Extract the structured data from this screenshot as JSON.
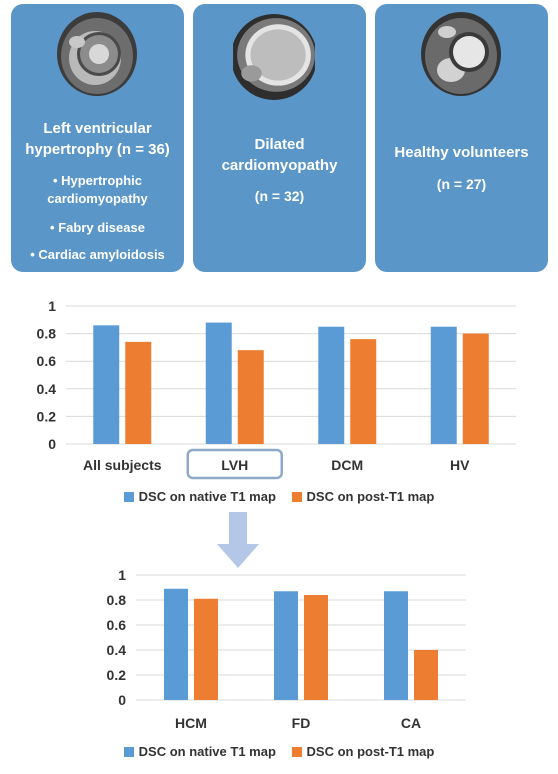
{
  "cards": [
    {
      "title_lines": [
        "Left ventricular",
        "hypertrophy (n = 36)"
      ],
      "subitems": [
        {
          "lines": [
            "• Hypertrophic",
            "cardiomyopathy"
          ]
        },
        {
          "lines": [
            "• Fabry disease"
          ]
        },
        {
          "lines": [
            "• Cardiac amyloidosis"
          ]
        }
      ]
    },
    {
      "title_lines": [
        "Dilated",
        "cardiomyopathy"
      ],
      "count": "(n = 32)"
    },
    {
      "title_lines": [
        "Healthy volunteers"
      ],
      "count": "(n = 27)"
    }
  ],
  "chart_data": [
    {
      "type": "bar",
      "categories": [
        "All subjects",
        "LVH",
        "DCM",
        "HV"
      ],
      "highlighted_category": "LVH",
      "series": [
        {
          "name": "DSC on native T1 map",
          "color": "#5b9bd5",
          "values": [
            0.86,
            0.88,
            0.85,
            0.85
          ]
        },
        {
          "name": "DSC on post-T1 map",
          "color": "#ed7d31",
          "values": [
            0.74,
            0.68,
            0.76,
            0.8
          ]
        }
      ],
      "ylim": [
        0,
        1
      ],
      "yticks": [
        "0",
        "0.2",
        "0.4",
        "0.6",
        "0.8",
        "1"
      ],
      "grid": true,
      "legend_position": "bottom"
    },
    {
      "type": "bar",
      "categories": [
        "HCM",
        "FD",
        "CA"
      ],
      "series": [
        {
          "name": "DSC on native T1 map",
          "color": "#5b9bd5",
          "values": [
            0.89,
            0.87,
            0.87
          ]
        },
        {
          "name": "DSC on post-T1 map",
          "color": "#ed7d31",
          "values": [
            0.81,
            0.84,
            0.4
          ]
        }
      ],
      "ylim": [
        0,
        1
      ],
      "yticks": [
        "0",
        "0.2",
        "0.4",
        "0.6",
        "0.8",
        "1"
      ],
      "grid": true,
      "legend_position": "bottom"
    }
  ],
  "colors": {
    "card_bg": "#5b96c8",
    "grid": "#d9d9d9",
    "highlight_box": "#8ea9c8",
    "arrow": "#b4c7e7"
  }
}
